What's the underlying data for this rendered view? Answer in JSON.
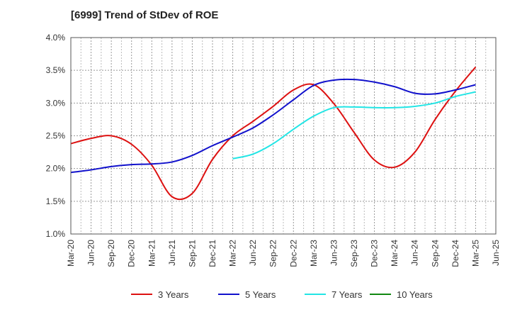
{
  "chart_data": {
    "type": "line",
    "title": "[6999]  Trend of StDev of ROE",
    "xlabel": "",
    "ylabel": "",
    "ylim": [
      1.0,
      4.0
    ],
    "y_ticks": [
      "1.0%",
      "1.5%",
      "2.0%",
      "2.5%",
      "3.0%",
      "3.5%",
      "4.0%"
    ],
    "x_ticks": [
      "Mar-20",
      "Jun-20",
      "Sep-20",
      "Dec-20",
      "Mar-21",
      "Jun-21",
      "Sep-21",
      "Dec-21",
      "Mar-22",
      "Jun-22",
      "Sep-22",
      "Dec-22",
      "Mar-23",
      "Jun-23",
      "Sep-23",
      "Dec-23",
      "Mar-24",
      "Jun-24",
      "Sep-24",
      "Dec-24",
      "Mar-25",
      "Jun-25"
    ],
    "grid": true,
    "legend_position": "bottom",
    "series": [
      {
        "name": "3 Years",
        "color": "#dd1111",
        "values": [
          2.38,
          2.46,
          2.5,
          2.37,
          2.05,
          1.57,
          1.62,
          2.14,
          2.5,
          2.72,
          2.95,
          3.2,
          3.28,
          2.99,
          2.55,
          2.13,
          2.02,
          2.25,
          2.75,
          3.18,
          3.55,
          null
        ]
      },
      {
        "name": "5 Years",
        "color": "#1111cc",
        "values": [
          1.94,
          1.98,
          2.03,
          2.06,
          2.07,
          2.1,
          2.2,
          2.35,
          2.48,
          2.62,
          2.82,
          3.05,
          3.27,
          3.35,
          3.36,
          3.32,
          3.25,
          3.15,
          3.14,
          3.2,
          3.28,
          null
        ]
      },
      {
        "name": "7 Years",
        "color": "#22e5e5",
        "values": [
          null,
          null,
          null,
          null,
          null,
          null,
          null,
          null,
          2.15,
          2.22,
          2.38,
          2.6,
          2.8,
          2.93,
          2.94,
          2.93,
          2.93,
          2.95,
          3.0,
          3.1,
          3.17,
          null
        ]
      },
      {
        "name": "10 Years",
        "color": "#118811",
        "values": [
          null,
          null,
          null,
          null,
          null,
          null,
          null,
          null,
          null,
          null,
          null,
          null,
          null,
          null,
          null,
          null,
          null,
          null,
          null,
          null,
          null,
          null
        ]
      }
    ]
  }
}
